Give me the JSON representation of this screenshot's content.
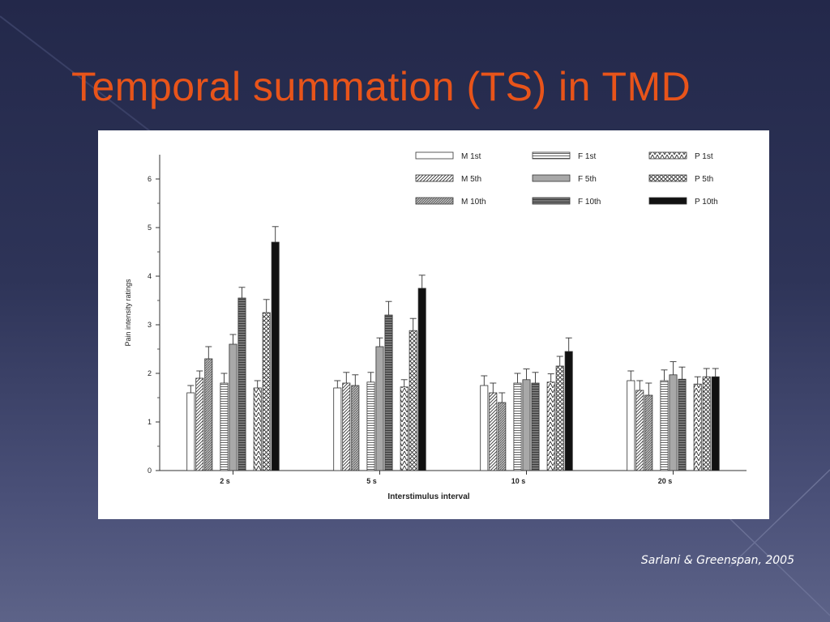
{
  "slide": {
    "title": "Temporal summation (TS) in TMD",
    "citation": "Sarlani & Greenspan, 2005"
  },
  "chart_data": {
    "type": "bar",
    "title": "",
    "xlabel": "Interstimulus interval",
    "ylabel": "Pain intensity ratings",
    "ylim": [
      0,
      6.5
    ],
    "yticks": [
      0,
      1,
      2,
      3,
      4,
      5,
      6
    ],
    "grid": false,
    "legend_position": "top-right",
    "categories": [
      "2 s",
      "5 s",
      "10 s",
      "20 s"
    ],
    "series": [
      {
        "name": "M 1st",
        "pattern": "white",
        "values": [
          1.6,
          1.7,
          1.75,
          1.85
        ],
        "errors": [
          0.15,
          0.15,
          0.2,
          0.2
        ]
      },
      {
        "name": "M 5th",
        "pattern": "diagonal",
        "values": [
          1.9,
          1.8,
          1.6,
          1.65
        ],
        "errors": [
          0.15,
          0.22,
          0.2,
          0.2
        ]
      },
      {
        "name": "M 10th",
        "pattern": "dense",
        "values": [
          2.3,
          1.75,
          1.4,
          1.55
        ],
        "errors": [
          0.25,
          0.22,
          0.2,
          0.25
        ]
      },
      {
        "name": "F 1st",
        "pattern": "horizontal",
        "values": [
          1.8,
          1.82,
          1.8,
          1.85
        ],
        "errors": [
          0.2,
          0.2,
          0.2,
          0.22
        ]
      },
      {
        "name": "F 5th",
        "pattern": "gray",
        "values": [
          2.6,
          2.55,
          1.87,
          1.97
        ],
        "errors": [
          0.2,
          0.18,
          0.22,
          0.27
        ]
      },
      {
        "name": "F 10th",
        "pattern": "darkgray",
        "values": [
          3.55,
          3.2,
          1.8,
          1.88
        ],
        "errors": [
          0.22,
          0.28,
          0.22,
          0.25
        ]
      },
      {
        "name": "P 1st",
        "pattern": "zigzag",
        "values": [
          1.7,
          1.72,
          1.82,
          1.78
        ],
        "errors": [
          0.15,
          0.15,
          0.17,
          0.15
        ]
      },
      {
        "name": "P 5th",
        "pattern": "cross",
        "values": [
          3.25,
          2.88,
          2.15,
          1.93
        ],
        "errors": [
          0.27,
          0.25,
          0.2,
          0.17
        ]
      },
      {
        "name": "P 10th",
        "pattern": "black",
        "values": [
          4.7,
          3.75,
          2.45,
          1.93
        ],
        "errors": [
          0.32,
          0.27,
          0.28,
          0.17
        ]
      }
    ]
  }
}
